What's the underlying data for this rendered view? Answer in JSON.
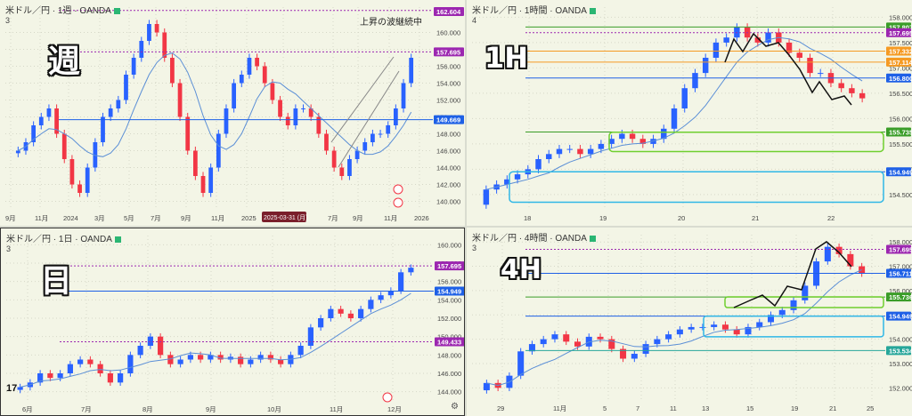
{
  "colors": {
    "up": "#2962ff",
    "down": "#f23645",
    "ma": "#5b8fd6",
    "purple": "#9c27b0",
    "blue": "#1e60e6",
    "cyan": "#2fb7e6",
    "green": "#6fcf2f",
    "orange": "#f59a23",
    "grid": "#d6d8c8"
  },
  "panels": [
    {
      "id": "weekly",
      "header": "米ドル／円 · 1週 · OANDA",
      "count": "3",
      "overlay_label": "週",
      "note": "上昇の波継続中",
      "x_labels": [
        "9月",
        "11月",
        "2024",
        "3月",
        "5月",
        "7月",
        "9月",
        "11月",
        "2025",
        "2025-03-31 (月)",
        "7月",
        "9月",
        "11月",
        "2026"
      ],
      "y_labels": [
        "160.000",
        "158.000",
        "156.000",
        "154.000",
        "152.000",
        "150.000",
        "148.000",
        "146.000",
        "144.000",
        "142.000",
        "140.000"
      ],
      "price_tags": [
        {
          "text": "162.604",
          "color": "#9c27b0"
        },
        {
          "text": "157.695",
          "color": "#9c27b0"
        },
        {
          "text": "149.669",
          "color": "#1e60e6"
        }
      ],
      "icon": "us-flag-icon",
      "icon2": "alert-icon"
    },
    {
      "id": "hourly",
      "header": "米ドル／円 · 1時間 · OANDA",
      "count": "4",
      "overlay_label": "1H",
      "x_labels": [
        "18",
        "19",
        "20",
        "21",
        "22"
      ],
      "y_labels": [
        "158.000",
        "157.500",
        "157.000",
        "156.500",
        "156.000",
        "155.500",
        "155.000",
        "154.500"
      ],
      "price_tags": [
        {
          "text": "157.807",
          "color": "#3a9d28"
        },
        {
          "text": "157.695",
          "color": "#9c27b0"
        },
        {
          "text": "157.332",
          "color": "#f59a23"
        },
        {
          "text": "157.114",
          "color": "#f59a23"
        },
        {
          "text": "156.800",
          "color": "#1e60e6"
        },
        {
          "text": "155.735",
          "color": "#3a9d28"
        },
        {
          "text": "154.949",
          "color": "#1e60e6"
        }
      ]
    },
    {
      "id": "daily",
      "header": "米ドル／円 · 1日 · OANDA",
      "count": "3",
      "overlay_label": "日",
      "x_labels": [
        "6月",
        "7月",
        "8月",
        "9月",
        "10月",
        "11月",
        "12月"
      ],
      "y_labels": [
        "160.000",
        "158.000",
        "156.000",
        "154.000",
        "152.000",
        "150.000",
        "148.000",
        "146.000",
        "144.000"
      ],
      "price_tags": [
        {
          "text": "157.695",
          "color": "#9c27b0"
        },
        {
          "text": "154.949",
          "color": "#1e60e6"
        },
        {
          "text": "149.433",
          "color": "#9c27b0"
        }
      ],
      "tv_logo": "17",
      "gear": "⚙"
    },
    {
      "id": "h4",
      "header": "米ドル／円 · 4時間 · OANDA",
      "count": "3",
      "overlay_label": "4H",
      "x_labels": [
        "29",
        "11月",
        "5",
        "7",
        "11",
        "13",
        "15",
        "19",
        "21",
        "25"
      ],
      "y_labels": [
        "158.000",
        "157.000",
        "156.000",
        "155.000",
        "154.000",
        "153.000",
        "152.000"
      ],
      "price_tags": [
        {
          "text": "157.695",
          "color": "#9c27b0"
        },
        {
          "text": "156.711",
          "color": "#1e60e6"
        },
        {
          "text": "155.736",
          "color": "#3a9d28"
        },
        {
          "text": "154.949",
          "color": "#1e60e6"
        },
        {
          "text": "153.534",
          "color": "#26a69a"
        }
      ]
    }
  ],
  "chart_data": [
    {
      "type": "candlestick",
      "title": "米ドル／円 · 1週 · OANDA",
      "ylim": [
        139,
        163
      ],
      "levels": [
        162.604,
        157.695,
        149.669
      ],
      "close_path": [
        146,
        147,
        149,
        150,
        151,
        148,
        145,
        142,
        141,
        144,
        147,
        150,
        151,
        152,
        155,
        157,
        159,
        161,
        160,
        157,
        154,
        150,
        146,
        143,
        141,
        144,
        148,
        151,
        154,
        155,
        157,
        156,
        154,
        152,
        150,
        149,
        151,
        151,
        150,
        148,
        146,
        144,
        143,
        145,
        146,
        147,
        148,
        148,
        149,
        151,
        154,
        157
      ]
    },
    {
      "type": "candlestick",
      "title": "米ドル／円 · 1時間 · OANDA",
      "ylim": [
        154.2,
        158.2
      ],
      "levels": [
        157.807,
        157.695,
        157.332,
        157.114,
        156.8,
        155.735,
        154.949
      ],
      "close_path": [
        154.6,
        154.7,
        154.8,
        154.9,
        155.0,
        155.2,
        155.3,
        155.4,
        155.4,
        155.3,
        155.4,
        155.5,
        155.6,
        155.7,
        155.6,
        155.5,
        155.6,
        155.8,
        156.2,
        156.6,
        156.9,
        157.2,
        157.5,
        157.6,
        157.8,
        157.6,
        157.5,
        157.7,
        157.5,
        157.3,
        157.2,
        156.9,
        156.9,
        156.7,
        156.6,
        156.5,
        156.4
      ]
    },
    {
      "type": "candlestick",
      "title": "米ドル／円 · 1日 · OANDA",
      "ylim": [
        143,
        161
      ],
      "levels": [
        157.695,
        154.949,
        149.433
      ],
      "close_path": [
        144.5,
        145,
        146,
        145.5,
        146,
        147,
        147.5,
        147,
        146,
        145,
        146,
        148,
        149,
        150,
        148,
        147,
        147.5,
        148,
        147.5,
        148,
        147.5,
        147.8,
        147,
        147.5,
        148,
        147.5,
        147,
        148,
        149,
        151,
        152,
        153,
        152.5,
        152,
        153,
        154,
        154.5,
        155,
        157,
        157.5
      ]
    },
    {
      "type": "candlestick",
      "title": "米ドル／円 · 4時間 · OANDA",
      "ylim": [
        151.5,
        158.3
      ],
      "levels": [
        157.695,
        156.711,
        155.736,
        154.949,
        153.534
      ],
      "close_path": [
        152.2,
        152.0,
        152.5,
        153.5,
        153.8,
        154.0,
        154.2,
        153.9,
        153.7,
        154.1,
        154.0,
        153.6,
        153.2,
        153.4,
        153.8,
        154.0,
        154.2,
        154.4,
        154.5,
        154.5,
        154.6,
        154.4,
        154.2,
        154.5,
        154.7,
        155.0,
        155.2,
        155.6,
        156.2,
        157.2,
        157.8,
        157.5,
        157.0,
        156.7
      ]
    }
  ]
}
